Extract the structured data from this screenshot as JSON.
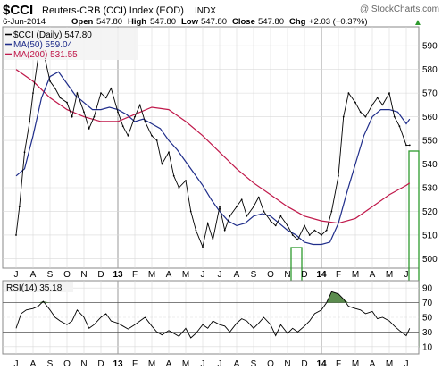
{
  "header": {
    "symbol": "$CCI",
    "name": "Reuters-CRB (CCI) Index (EOD)",
    "exchange": "INDX",
    "watermark": "@ StockCharts.com"
  },
  "quote": {
    "date": "6-Jun-2014",
    "open_label": "Open",
    "open": "547.80",
    "high_label": "High",
    "high": "547.80",
    "low_label": "Low",
    "low": "547.80",
    "close_label": "Close",
    "close": "547.80",
    "chg_label": "Chg",
    "chg": "+2.03 (+0.37%)",
    "chg_arrow": "▲"
  },
  "legend": [
    {
      "label": "$CCI (Daily) 547.80",
      "color": "#000000"
    },
    {
      "label": "MA(50) 559.04",
      "color": "#1f2d8a"
    },
    {
      "label": "MA(200) 531.55",
      "color": "#c0184a"
    }
  ],
  "rsi_legend": {
    "label": "RSI(14) 35.18"
  },
  "colors": {
    "price": "#000000",
    "ma50": "#1f2d8a",
    "ma200": "#c0184a",
    "rsi": "#000000",
    "rsi_fill": "#5b8c4e",
    "highlight": "#2e9a2e",
    "grid": "#d9d9d9",
    "panel_bg": "#ffffff",
    "legend_bg": "#f0f0f0"
  },
  "chart_data": [
    {
      "type": "line",
      "title": "$CCI Reuters-CRB (CCI) Index (EOD) INDX",
      "x_ticks": [
        "J",
        "A",
        "S",
        "O",
        "N",
        "D",
        "13",
        "F",
        "M",
        "A",
        "M",
        "J",
        "J",
        "A",
        "S",
        "O",
        "N",
        "D",
        "14",
        "F",
        "M",
        "A",
        "M",
        "J"
      ],
      "y_ticks": [
        500,
        510,
        520,
        530,
        540,
        550,
        560,
        570,
        580,
        590
      ],
      "ylim": [
        496,
        598
      ],
      "grid": true,
      "legend_position": "top-left",
      "series": [
        {
          "name": "$CCI (Daily)",
          "x_month_index": [
            0,
            0.2,
            0.5,
            0.8,
            1.0,
            1.3,
            1.6,
            2.0,
            2.3,
            2.6,
            3.0,
            3.3,
            3.6,
            4.0,
            4.3,
            4.6,
            5.0,
            5.3,
            5.6,
            6.0,
            6.3,
            6.6,
            7.0,
            7.3,
            7.6,
            8.0,
            8.3,
            8.6,
            9.0,
            9.3,
            9.6,
            10.0,
            10.3,
            10.6,
            11.0,
            11.3,
            11.6,
            12.0,
            12.3,
            12.6,
            13.0,
            13.3,
            13.6,
            14.0,
            14.3,
            14.6,
            15.0,
            15.3,
            15.6,
            16.0,
            16.3,
            16.6,
            17.0,
            17.3,
            17.6,
            18.0,
            18.3,
            18.6,
            19.0,
            19.3,
            19.6,
            20.0,
            20.3,
            20.6,
            21.0,
            21.3,
            21.6,
            22.0,
            22.3,
            22.6,
            23.0,
            23.2
          ],
          "values": [
            510,
            522,
            545,
            558,
            570,
            585,
            588,
            575,
            572,
            568,
            566,
            560,
            570,
            562,
            555,
            560,
            570,
            568,
            572,
            562,
            556,
            552,
            560,
            565,
            558,
            552,
            550,
            540,
            545,
            535,
            530,
            533,
            520,
            512,
            505,
            515,
            508,
            522,
            512,
            518,
            522,
            525,
            518,
            522,
            526,
            520,
            516,
            514,
            518,
            514,
            510,
            508,
            514,
            510,
            512,
            510,
            512,
            520,
            535,
            560,
            570,
            566,
            562,
            560,
            565,
            568,
            565,
            570,
            560,
            556,
            548,
            548
          ]
        },
        {
          "name": "MA(50)",
          "x_month_index": [
            0,
            0.5,
            1.0,
            1.5,
            2.0,
            2.5,
            3.0,
            3.5,
            4.0,
            4.5,
            5.0,
            5.5,
            6.0,
            6.5,
            7.0,
            7.5,
            8.0,
            8.5,
            9.0,
            9.5,
            10.0,
            10.5,
            11.0,
            11.5,
            12.0,
            12.5,
            13.0,
            13.5,
            14.0,
            14.5,
            15.0,
            15.5,
            16.0,
            16.5,
            17.0,
            17.5,
            18.0,
            18.5,
            19.0,
            19.5,
            20.0,
            20.5,
            21.0,
            21.5,
            22.0,
            22.5,
            23.0,
            23.2
          ],
          "values": [
            535,
            538,
            552,
            568,
            577,
            579,
            574,
            569,
            566,
            563,
            563,
            564,
            563,
            561,
            558,
            559,
            557,
            555,
            550,
            546,
            541,
            536,
            531,
            525,
            520,
            516,
            514,
            515,
            518,
            519,
            518,
            515,
            512,
            510,
            507,
            506,
            506,
            507,
            515,
            528,
            540,
            552,
            560,
            563,
            563,
            562,
            557,
            559
          ]
        },
        {
          "name": "MA(200)",
          "x_month_index": [
            0,
            1,
            2,
            3,
            4,
            5,
            6,
            7,
            8,
            9,
            10,
            11,
            12,
            13,
            14,
            15,
            16,
            17,
            18,
            19,
            20,
            21,
            22,
            23,
            23.2
          ],
          "values": [
            580,
            575,
            568,
            563,
            560,
            558,
            558,
            561,
            564,
            563,
            558,
            552,
            545,
            538,
            532,
            527,
            522,
            518,
            516,
            515,
            517,
            522,
            527,
            531,
            532
          ]
        }
      ]
    },
    {
      "type": "line",
      "title": "RSI(14) 35.18",
      "y_ticks": [
        10,
        30,
        50,
        70,
        90
      ],
      "ylim": [
        0,
        100
      ],
      "reference_lines": [
        30,
        70
      ],
      "series": [
        {
          "name": "RSI(14)",
          "x_month_index": [
            0,
            0.3,
            0.6,
            1.0,
            1.3,
            1.6,
            2.0,
            2.3,
            2.6,
            3.0,
            3.3,
            3.6,
            4.0,
            4.3,
            4.6,
            5.0,
            5.3,
            5.6,
            6.0,
            6.3,
            6.6,
            7.0,
            7.3,
            7.6,
            8.0,
            8.3,
            8.6,
            9.0,
            9.3,
            9.6,
            10.0,
            10.3,
            10.6,
            11.0,
            11.3,
            11.6,
            12.0,
            12.3,
            12.6,
            13.0,
            13.3,
            13.6,
            14.0,
            14.3,
            14.6,
            15.0,
            15.3,
            15.6,
            16.0,
            16.3,
            16.6,
            17.0,
            17.3,
            17.6,
            18.0,
            18.3,
            18.6,
            19.0,
            19.3,
            19.6,
            20.0,
            20.3,
            20.6,
            21.0,
            21.3,
            21.6,
            22.0,
            22.3,
            22.6,
            23.0,
            23.2
          ],
          "values": [
            35,
            55,
            60,
            62,
            65,
            72,
            60,
            50,
            45,
            40,
            45,
            60,
            50,
            35,
            40,
            50,
            55,
            45,
            42,
            38,
            34,
            40,
            45,
            50,
            38,
            30,
            26,
            32,
            28,
            24,
            35,
            22,
            28,
            40,
            35,
            45,
            40,
            38,
            30,
            42,
            48,
            45,
            35,
            42,
            50,
            40,
            25,
            40,
            28,
            35,
            30,
            38,
            45,
            55,
            60,
            70,
            85,
            82,
            75,
            65,
            62,
            60,
            55,
            58,
            48,
            50,
            45,
            38,
            32,
            25,
            35
          ]
        }
      ]
    }
  ]
}
